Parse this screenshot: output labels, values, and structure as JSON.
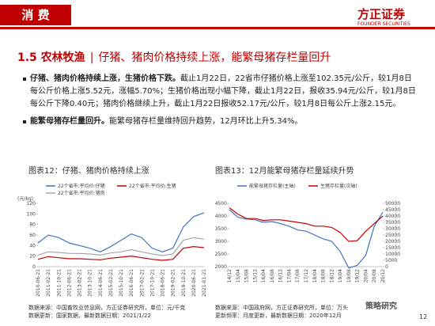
{
  "header": {
    "title": "消 费",
    "logo": "方正证券",
    "logo_en": "FOUNDER SECURITIES"
  },
  "section": {
    "number_title": "1.5 农林牧渔",
    "subtitle": "仔猪、猪肉价格持续上涨，能繁母猪存栏量回升"
  },
  "bullets": [
    {
      "bold": "仔猪、猪肉价格持续上涨，生猪价格下跌。",
      "text": "截止1月22日，22省市仔猪价格上涨至102.35元/公斤，较1月8日每公斤价格上涨5.52元，涨幅5.70%；生猪价格出现小幅下降，截止1月22日，报收35.94元/公斤，较1月8日每公斤下降0.40元；猪肉价格继续上升，截止1月22日报收52.17元/公斤，较1月8日每公斤上涨2.15元。"
    },
    {
      "bold": "能繁母猪存栏量回升。",
      "text": "能繁母猪存栏量维持回升趋势，12月环比上升5.34%。"
    }
  ],
  "figures": [
    {
      "type": "line",
      "title": "图表12：仔猪、猪肉价格持续上涨",
      "y_unit": "(元/kg)",
      "categories": [
        "2010-06-21",
        "2011-02-21",
        "2011-10-21",
        "2012-06-21",
        "2013-02-21",
        "2013-10-21",
        "2014-06-21",
        "2015-02-21",
        "2015-10-21",
        "2016-06-21",
        "2017-02-21",
        "2017-10-21",
        "2018-06-21",
        "2019-02-21",
        "2019-10-21",
        "2020-06-21",
        "2021-01-21"
      ],
      "series": [
        {
          "name": "22个省市:平均价:仔猪",
          "color": "#4472c4",
          "values": [
            45,
            60,
            55,
            45,
            40,
            35,
            28,
            38,
            50,
            62,
            55,
            35,
            28,
            35,
            75,
            95,
            102
          ]
        },
        {
          "name": "22个省市:平均价:生猪",
          "color": "#c00000",
          "values": [
            14,
            19,
            17,
            15,
            15,
            14,
            13,
            16,
            18,
            20,
            17,
            14,
            12,
            14,
            35,
            38,
            36
          ]
        },
        {
          "name": "22个省市:平均价:猪肉",
          "color": "#a5a5a5",
          "values": [
            22,
            28,
            27,
            25,
            25,
            24,
            22,
            26,
            28,
            32,
            28,
            24,
            21,
            24,
            50,
            55,
            52
          ]
        }
      ],
      "ylim": [
        0,
        120
      ],
      "yticks": [
        0,
        20,
        40,
        60,
        80,
        100,
        120
      ],
      "source": [
        "数据来源：中国畜牧业信息网，方正证券研究所，单位：元/千克",
        "数据更新：国家数据，最新数据日期：2021/1/22"
      ]
    },
    {
      "type": "line",
      "title": "图表13：12月能繁母猪存栏量延续升势",
      "categories": [
        "14/12",
        "15/04",
        "15/08",
        "15/12",
        "16/04",
        "16/08",
        "16/12",
        "17/04",
        "17/08",
        "17/12",
        "18/04",
        "18/08",
        "18/12",
        "19/04",
        "19/08",
        "19/12",
        "20/04",
        "20/08",
        "20/12"
      ],
      "series": [
        {
          "name": "能繁母猪存栏量(主轴)",
          "color": "#4472c4",
          "values": [
            4250,
            3950,
            3880,
            3850,
            3750,
            3780,
            3700,
            3600,
            3450,
            3400,
            3250,
            3100,
            3000,
            2600,
            1950,
            2050,
            2450,
            3600,
            4150
          ]
        },
        {
          "name": "生猪存栏量(次轴)",
          "color": "#c00000",
          "axis": "y2",
          "values": [
            46500,
            41500,
            38000,
            38000,
            36500,
            37000,
            37000,
            36000,
            35000,
            34000,
            32000,
            32000,
            31000,
            27000,
            20000,
            20500,
            28000,
            34000,
            40000
          ]
        }
      ],
      "ylim": [
        2000,
        4500
      ],
      "yticks": [
        2000,
        2500,
        3000,
        3500,
        4000,
        4500
      ],
      "y2lim": [
        0,
        50000
      ],
      "y2ticks": [
        0,
        5000,
        10000,
        15000,
        20000,
        25000,
        30000,
        35000,
        40000,
        45000,
        50000
      ],
      "source": [
        "数据来源：中国政府网，方正证券研究所，单位：万头",
        "更新频率：月度更新，最新数据日期：2020年12月"
      ]
    }
  ],
  "footer": {
    "page": "12",
    "watermark": "策略研究"
  }
}
